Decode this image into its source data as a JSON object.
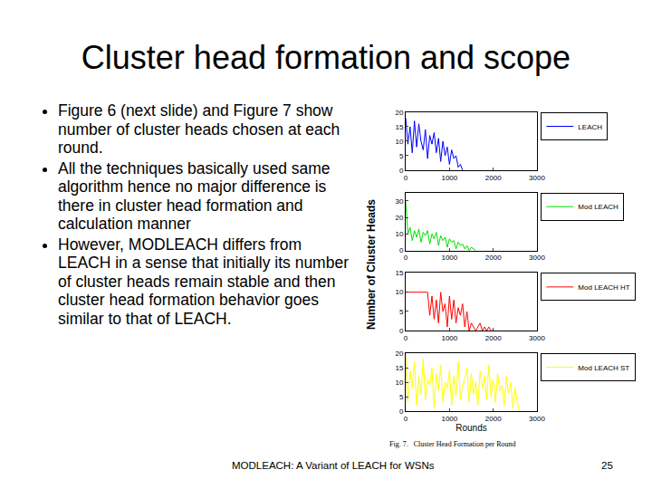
{
  "slide": {
    "title": "Cluster head formation and scope",
    "bullets": [
      "Figure 6 (next slide) and Figure 7 show number of cluster heads chosen at each round.",
      "All the techniques basically used same algorithm hence no major difference is there in cluster head formation and calculation manner",
      "However, MODLEACH differs from LEACH in a sense that initially its number of cluster heads remain stable and then cluster head formation behavior goes similar to that of LEACH."
    ],
    "footer": "MODLEACH: A Variant of LEACH for WSNs",
    "page": "25"
  },
  "figure": {
    "ylabel": "Number of Cluster Heads",
    "xlabel": "Rounds",
    "caption": "Fig. 7.   Cluster Head Formation per Round"
  },
  "chart_data": [
    {
      "type": "line",
      "xlim": [
        0,
        3000
      ],
      "xticks": [
        0,
        1000,
        2000,
        3000
      ],
      "ylim": [
        0,
        20
      ],
      "yticks": [
        0,
        5,
        10,
        15,
        20
      ],
      "grid": false,
      "legend": "right",
      "x": [
        0,
        50,
        100,
        150,
        200,
        250,
        300,
        350,
        400,
        450,
        500,
        550,
        600,
        650,
        700,
        750,
        800,
        850,
        900,
        950,
        1000,
        1050,
        1100,
        1150,
        1200,
        1250,
        1300
      ],
      "series": [
        {
          "name": "LEACH",
          "color": "#0000ff",
          "values": [
            18,
            9,
            15,
            6,
            17,
            8,
            16,
            10,
            7,
            14,
            4,
            12,
            9,
            13,
            6,
            11,
            3,
            10,
            5,
            8,
            2,
            7,
            4,
            5,
            1,
            2,
            0
          ]
        }
      ]
    },
    {
      "type": "line",
      "xlim": [
        0,
        3000
      ],
      "xticks": [
        0,
        1000,
        2000,
        3000
      ],
      "ylim": [
        0,
        35
      ],
      "yticks": [
        0,
        10,
        20,
        30
      ],
      "grid": false,
      "legend": "right",
      "x": [
        0,
        50,
        100,
        150,
        200,
        250,
        300,
        350,
        400,
        450,
        500,
        550,
        600,
        650,
        700,
        750,
        800,
        850,
        900,
        950,
        1000,
        1050,
        1100,
        1150,
        1200,
        1250,
        1300,
        1350,
        1400,
        1450,
        1500,
        1550,
        1600
      ],
      "series": [
        {
          "name": "Mod LEACH",
          "color": "#00dd00",
          "values": [
            30,
            10,
            14,
            6,
            12,
            8,
            13,
            5,
            11,
            9,
            12,
            4,
            10,
            7,
            11,
            3,
            9,
            6,
            8,
            2,
            7,
            5,
            6,
            1,
            5,
            3,
            4,
            1,
            3,
            0,
            2,
            1,
            0
          ]
        }
      ]
    },
    {
      "type": "line",
      "xlim": [
        0,
        3000
      ],
      "xticks": [
        0,
        1000,
        2000,
        3000
      ],
      "ylim": [
        0,
        15
      ],
      "yticks": [
        0,
        5,
        10,
        15
      ],
      "grid": false,
      "legend": "right",
      "x": [
        0,
        50,
        100,
        150,
        200,
        250,
        300,
        350,
        400,
        450,
        500,
        550,
        600,
        650,
        700,
        750,
        800,
        850,
        900,
        950,
        1000,
        1050,
        1100,
        1150,
        1200,
        1250,
        1300,
        1350,
        1400,
        1450,
        1500,
        1550,
        1600,
        1650,
        1700,
        1750,
        1800,
        1850,
        1900,
        1950,
        2000
      ],
      "series": [
        {
          "name": "Mod LEACH HT",
          "color": "#ff0000",
          "values": [
            10,
            10,
            10,
            10,
            10,
            10,
            10,
            10,
            10,
            10,
            10,
            4,
            9,
            3,
            8,
            2,
            10,
            5,
            7,
            1,
            9,
            3,
            8,
            2,
            6,
            4,
            7,
            1,
            5,
            0,
            2,
            1,
            0,
            1,
            2,
            0,
            1,
            0,
            1,
            0,
            0
          ]
        }
      ]
    },
    {
      "type": "line",
      "xlim": [
        0,
        3000
      ],
      "xticks": [
        0,
        1000,
        2000,
        3000
      ],
      "ylim": [
        0,
        20
      ],
      "yticks": [
        0,
        5,
        10,
        15,
        20
      ],
      "grid": false,
      "legend": "right",
      "x": [
        0,
        50,
        100,
        150,
        200,
        250,
        300,
        350,
        400,
        450,
        500,
        550,
        600,
        650,
        700,
        750,
        800,
        850,
        900,
        950,
        1000,
        1050,
        1100,
        1150,
        1200,
        1250,
        1300,
        1350,
        1400,
        1450,
        1500,
        1550,
        1600,
        1650,
        1700,
        1750,
        1800,
        1850,
        1900,
        1950,
        2000,
        2050,
        2100,
        2150,
        2200,
        2250,
        2300,
        2350,
        2400,
        2450,
        2500,
        2550,
        2600
      ],
      "series": [
        {
          "name": "Mod LEACH ST",
          "color": "#ffff00",
          "values": [
            19,
            3,
            14,
            8,
            17,
            2,
            12,
            6,
            18,
            4,
            11,
            9,
            15,
            1,
            13,
            7,
            16,
            3,
            10,
            8,
            14,
            2,
            12,
            5,
            17,
            4,
            9,
            11,
            15,
            3,
            13,
            6,
            10,
            2,
            14,
            8,
            12,
            4,
            16,
            5,
            11,
            3,
            13,
            7,
            9,
            2,
            12,
            6,
            10,
            1,
            8,
            3,
            0
          ]
        }
      ]
    }
  ]
}
